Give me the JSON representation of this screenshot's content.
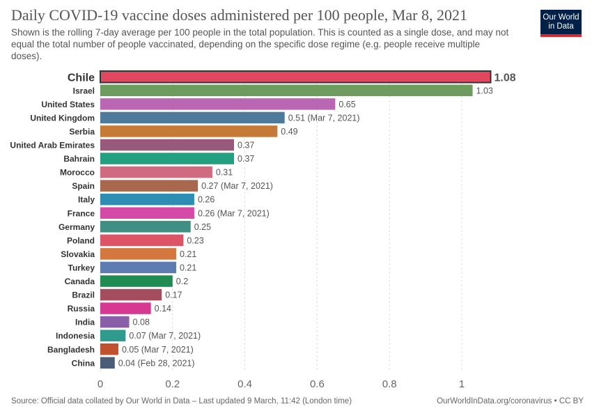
{
  "header": {
    "title": "Daily COVID-19 vaccine doses administered per 100 people, Mar 8, 2021",
    "subtitle": "Shown is the rolling 7-day average per 100 people in the total population. This is counted as a single dose, and may not equal the total number of people vaccinated, depending on the specific dose regime (e.g. people receive multiple doses).",
    "logo_line1": "Our World",
    "logo_line2": "in Data"
  },
  "footer": {
    "source": "Source: Official data collated by Our World in Data – Last updated 9 March, 11:42 (London time)",
    "link": "OurWorldInData.org/coronavirus",
    "license": "• CC BY"
  },
  "colors": {
    "highlight_outline": "#333333",
    "grid": "#dddddd",
    "brand": "#002147",
    "brand_accent": "#e0242b"
  },
  "chart_data": {
    "type": "bar",
    "orientation": "horizontal",
    "title": "Daily COVID-19 vaccine doses administered per 100 people, Mar 8, 2021",
    "xlabel": "",
    "ylabel": "",
    "xlim": [
      0,
      1.1
    ],
    "ticks": [
      0,
      0.2,
      0.4,
      0.6,
      0.8,
      1
    ],
    "tick_labels": [
      "0",
      "0.2",
      "0.4",
      "0.6",
      "0.8",
      "1"
    ],
    "grid": true,
    "highlight": "Chile",
    "bars": [
      {
        "category": "Chile",
        "value": 1.08,
        "label": "1.08",
        "color": "#e1485f"
      },
      {
        "category": "Israel",
        "value": 1.03,
        "label": "1.03",
        "color": "#6e9b5e"
      },
      {
        "category": "United States",
        "value": 0.65,
        "label": "0.65",
        "color": "#b967b3"
      },
      {
        "category": "United Kingdom",
        "value": 0.51,
        "label": "0.51 (Mar 7, 2021)",
        "color": "#4e7a9b"
      },
      {
        "category": "Serbia",
        "value": 0.49,
        "label": "0.49",
        "color": "#c57b37"
      },
      {
        "category": "United Arab Emirates",
        "value": 0.37,
        "label": "0.37",
        "color": "#985a7b"
      },
      {
        "category": "Bahrain",
        "value": 0.37,
        "label": "0.37",
        "color": "#22a07f"
      },
      {
        "category": "Morocco",
        "value": 0.31,
        "label": "0.31",
        "color": "#cf6a80"
      },
      {
        "category": "Spain",
        "value": 0.27,
        "label": "0.27 (Mar 7, 2021)",
        "color": "#a9674d"
      },
      {
        "category": "Italy",
        "value": 0.26,
        "label": "0.26",
        "color": "#2e8db3"
      },
      {
        "category": "France",
        "value": 0.26,
        "label": "0.26 (Mar 7, 2021)",
        "color": "#d54aa6"
      },
      {
        "category": "Germany",
        "value": 0.25,
        "label": "0.25",
        "color": "#3f8f85"
      },
      {
        "category": "Poland",
        "value": 0.23,
        "label": "0.23",
        "color": "#dd5466"
      },
      {
        "category": "Slovakia",
        "value": 0.21,
        "label": "0.21",
        "color": "#d4773f"
      },
      {
        "category": "Turkey",
        "value": 0.21,
        "label": "0.21",
        "color": "#5c7cb2"
      },
      {
        "category": "Canada",
        "value": 0.2,
        "label": "0.2",
        "color": "#1e8c53"
      },
      {
        "category": "Brazil",
        "value": 0.17,
        "label": "0.17",
        "color": "#a34d5e"
      },
      {
        "category": "Russia",
        "value": 0.14,
        "label": "0.14",
        "color": "#d6398f"
      },
      {
        "category": "India",
        "value": 0.08,
        "label": "0.08",
        "color": "#8a5fa8"
      },
      {
        "category": "Indonesia",
        "value": 0.07,
        "label": "0.07 (Mar 7, 2021)",
        "color": "#2f9b8e"
      },
      {
        "category": "Bangladesh",
        "value": 0.05,
        "label": "0.05 (Mar 7, 2021)",
        "color": "#c0522f"
      },
      {
        "category": "China",
        "value": 0.04,
        "label": "0.04 (Feb 28, 2021)",
        "color": "#4c5d78"
      }
    ]
  }
}
